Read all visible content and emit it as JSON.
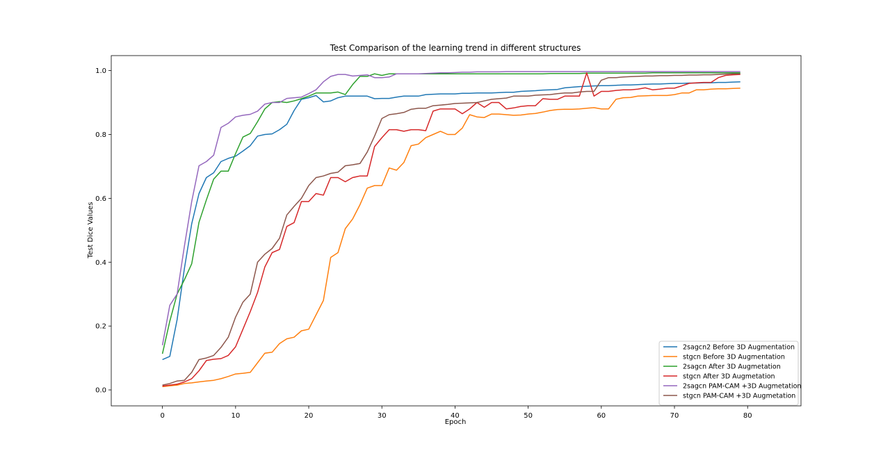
{
  "chart_data": {
    "type": "line",
    "title": "Test  Comparison of the learning trend in different structures",
    "xlabel": "Epoch",
    "ylabel": "Test Dice Values",
    "xlim": [
      -7,
      87.3
    ],
    "ylim": [
      -0.05,
      1.047
    ],
    "x_ticks": [
      0,
      10,
      20,
      30,
      40,
      50,
      60,
      70,
      80
    ],
    "y_ticks": [
      0.0,
      0.2,
      0.4,
      0.6,
      0.8,
      1.0
    ],
    "x_tick_labels": [
      "0",
      "10",
      "20",
      "30",
      "40",
      "50",
      "60",
      "70",
      "80"
    ],
    "y_tick_labels": [
      "0.0",
      "0.2",
      "0.4",
      "0.6",
      "0.8",
      "1.0"
    ],
    "grid": false,
    "legend_position": "lower-right",
    "series": [
      {
        "name": "2sagcn2 Before 3D Augmentation",
        "color": "#1f77b4",
        "values": [
          0.095,
          0.105,
          0.22,
          0.38,
          0.52,
          0.615,
          0.665,
          0.68,
          0.715,
          0.725,
          0.732,
          0.748,
          0.765,
          0.795,
          0.8,
          0.802,
          0.815,
          0.832,
          0.875,
          0.91,
          0.915,
          0.922,
          0.902,
          0.905,
          0.915,
          0.92,
          0.92,
          0.92,
          0.92,
          0.912,
          0.913,
          0.913,
          0.917,
          0.92,
          0.92,
          0.92,
          0.925,
          0.926,
          0.927,
          0.927,
          0.927,
          0.929,
          0.929,
          0.93,
          0.93,
          0.93,
          0.931,
          0.932,
          0.932,
          0.935,
          0.936,
          0.937,
          0.939,
          0.94,
          0.941,
          0.946,
          0.948,
          0.95,
          0.951,
          0.952,
          0.953,
          0.953,
          0.954,
          0.955,
          0.955,
          0.956,
          0.957,
          0.958,
          0.958,
          0.959,
          0.96,
          0.96,
          0.961,
          0.961,
          0.962,
          0.962,
          0.963,
          0.963,
          0.964,
          0.965
        ]
      },
      {
        "name": "stgcn Before 3D Augmentation",
        "color": "#ff7f0e",
        "values": [
          0.01,
          0.013,
          0.015,
          0.02,
          0.022,
          0.025,
          0.028,
          0.03,
          0.035,
          0.042,
          0.05,
          0.052,
          0.055,
          0.085,
          0.115,
          0.118,
          0.145,
          0.16,
          0.165,
          0.185,
          0.19,
          0.235,
          0.28,
          0.415,
          0.43,
          0.505,
          0.535,
          0.58,
          0.632,
          0.64,
          0.64,
          0.695,
          0.688,
          0.712,
          0.765,
          0.77,
          0.79,
          0.8,
          0.81,
          0.8,
          0.8,
          0.82,
          0.862,
          0.855,
          0.853,
          0.864,
          0.864,
          0.862,
          0.86,
          0.861,
          0.864,
          0.866,
          0.87,
          0.875,
          0.878,
          0.879,
          0.879,
          0.88,
          0.882,
          0.884,
          0.88,
          0.88,
          0.91,
          0.915,
          0.916,
          0.92,
          0.921,
          0.922,
          0.922,
          0.922,
          0.925,
          0.93,
          0.93,
          0.94,
          0.94,
          0.942,
          0.943,
          0.943,
          0.944,
          0.945
        ]
      },
      {
        "name": "2sagcn After 3D Augmetation",
        "color": "#2ca02c",
        "values": [
          0.113,
          0.215,
          0.3,
          0.345,
          0.395,
          0.525,
          0.595,
          0.66,
          0.685,
          0.685,
          0.74,
          0.792,
          0.803,
          0.84,
          0.88,
          0.9,
          0.903,
          0.9,
          0.905,
          0.912,
          0.92,
          0.93,
          0.93,
          0.93,
          0.933,
          0.925,
          0.956,
          0.982,
          0.982,
          0.99,
          0.985,
          0.99,
          0.99,
          0.99,
          0.99,
          0.99,
          0.99,
          0.99,
          0.99,
          0.99,
          0.99,
          0.99,
          0.99,
          0.99,
          0.99,
          0.99,
          0.99,
          0.99,
          0.99,
          0.99,
          0.99,
          0.99,
          0.99,
          0.991,
          0.991,
          0.991,
          0.991,
          0.991,
          0.992,
          0.992,
          0.992,
          0.992,
          0.992,
          0.992,
          0.992,
          0.992,
          0.992,
          0.993,
          0.993,
          0.993,
          0.993,
          0.993,
          0.993,
          0.993,
          0.993,
          0.993,
          0.993,
          0.993,
          0.993,
          0.993
        ]
      },
      {
        "name": "stgcn After 3D Augmetation",
        "color": "#d62728",
        "values": [
          0.012,
          0.015,
          0.018,
          0.025,
          0.035,
          0.06,
          0.092,
          0.096,
          0.098,
          0.108,
          0.135,
          0.19,
          0.245,
          0.305,
          0.385,
          0.43,
          0.44,
          0.512,
          0.524,
          0.59,
          0.59,
          0.615,
          0.61,
          0.665,
          0.665,
          0.652,
          0.665,
          0.67,
          0.67,
          0.762,
          0.79,
          0.815,
          0.815,
          0.81,
          0.815,
          0.815,
          0.812,
          0.873,
          0.88,
          0.88,
          0.88,
          0.865,
          0.88,
          0.9,
          0.885,
          0.9,
          0.9,
          0.88,
          0.883,
          0.888,
          0.89,
          0.89,
          0.912,
          0.91,
          0.91,
          0.92,
          0.92,
          0.92,
          0.993,
          0.92,
          0.935,
          0.935,
          0.938,
          0.94,
          0.94,
          0.942,
          0.946,
          0.94,
          0.942,
          0.945,
          0.945,
          0.952,
          0.96,
          0.962,
          0.963,
          0.963,
          0.978,
          0.985,
          0.987,
          0.988
        ]
      },
      {
        "name": "2sagcn PAM-CAM +3D Augmetation",
        "color": "#9467bd",
        "values": [
          0.14,
          0.265,
          0.3,
          0.45,
          0.59,
          0.702,
          0.715,
          0.735,
          0.822,
          0.835,
          0.855,
          0.86,
          0.863,
          0.873,
          0.895,
          0.9,
          0.9,
          0.913,
          0.915,
          0.917,
          0.928,
          0.94,
          0.965,
          0.982,
          0.988,
          0.988,
          0.983,
          0.985,
          0.987,
          0.978,
          0.978,
          0.98,
          0.99,
          0.99,
          0.99,
          0.99,
          0.991,
          0.992,
          0.993,
          0.993,
          0.994,
          0.995,
          0.995,
          0.996,
          0.996,
          0.996,
          0.996,
          0.997,
          0.997,
          0.997,
          0.997,
          0.997,
          0.997,
          0.997,
          0.997,
          0.997,
          0.997,
          0.997,
          0.997,
          0.997,
          0.997,
          0.997,
          0.997,
          0.997,
          0.997,
          0.997,
          0.997,
          0.997,
          0.997,
          0.997,
          0.997,
          0.997,
          0.997,
          0.997,
          0.997,
          0.997,
          0.997,
          0.997,
          0.997,
          0.997
        ]
      },
      {
        "name": "stgcn PAM-CAM +3D Augmetation",
        "color": "#8c564b",
        "values": [
          0.015,
          0.02,
          0.028,
          0.03,
          0.055,
          0.095,
          0.1,
          0.108,
          0.133,
          0.165,
          0.228,
          0.275,
          0.3,
          0.4,
          0.425,
          0.443,
          0.475,
          0.548,
          0.575,
          0.6,
          0.64,
          0.665,
          0.67,
          0.678,
          0.682,
          0.702,
          0.705,
          0.709,
          0.745,
          0.795,
          0.85,
          0.862,
          0.865,
          0.869,
          0.879,
          0.882,
          0.882,
          0.89,
          0.892,
          0.894,
          0.897,
          0.898,
          0.899,
          0.9,
          0.905,
          0.91,
          0.912,
          0.914,
          0.92,
          0.92,
          0.92,
          0.923,
          0.924,
          0.925,
          0.928,
          0.93,
          0.93,
          0.933,
          0.935,
          0.935,
          0.97,
          0.978,
          0.978,
          0.98,
          0.981,
          0.982,
          0.983,
          0.983,
          0.984,
          0.984,
          0.985,
          0.985,
          0.986,
          0.986,
          0.987,
          0.987,
          0.988,
          0.989,
          0.99,
          0.99
        ]
      }
    ]
  }
}
